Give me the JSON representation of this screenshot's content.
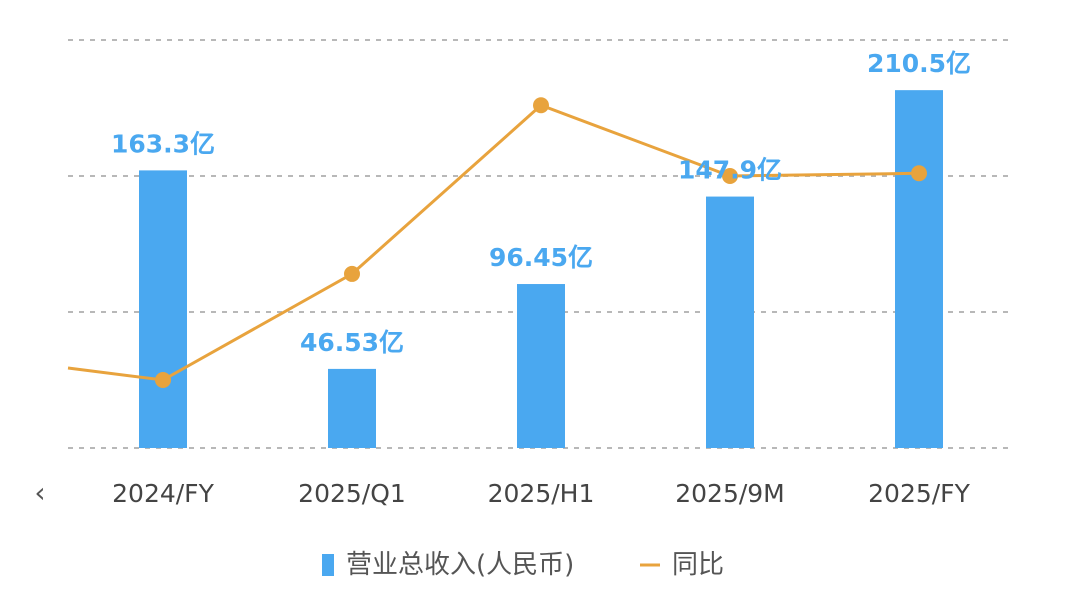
{
  "chart_data": {
    "type": "bar",
    "categories": [
      "2024/FY",
      "2025/Q1",
      "2025/H1",
      "2025/9M",
      "2025/FY"
    ],
    "series": [
      {
        "name": "营业总收入(人民币)",
        "kind": "bar",
        "values": [
          163.3,
          46.53,
          96.45,
          147.9,
          210.5
        ],
        "labels": [
          "163.3亿",
          "46.53亿",
          "96.45亿",
          "147.9亿",
          "210.5亿"
        ],
        "color": "#4aa8f0"
      },
      {
        "name": "同比",
        "kind": "line",
        "values": [
          25,
          64,
          126,
          100,
          101
        ],
        "color": "#e8a33d"
      }
    ],
    "bar_ylim": [
      0,
      240
    ],
    "line_ylim": [
      0,
      150
    ],
    "grid": true,
    "legend_position": "bottom"
  },
  "nav": {
    "prev_icon": "chevron-left-icon",
    "prev_glyph": "‹"
  },
  "colors": {
    "bar": "#4aa8f0",
    "bar_label": "#4aa8f0",
    "line": "#e8a33d",
    "grid": "#b8b8b8"
  }
}
